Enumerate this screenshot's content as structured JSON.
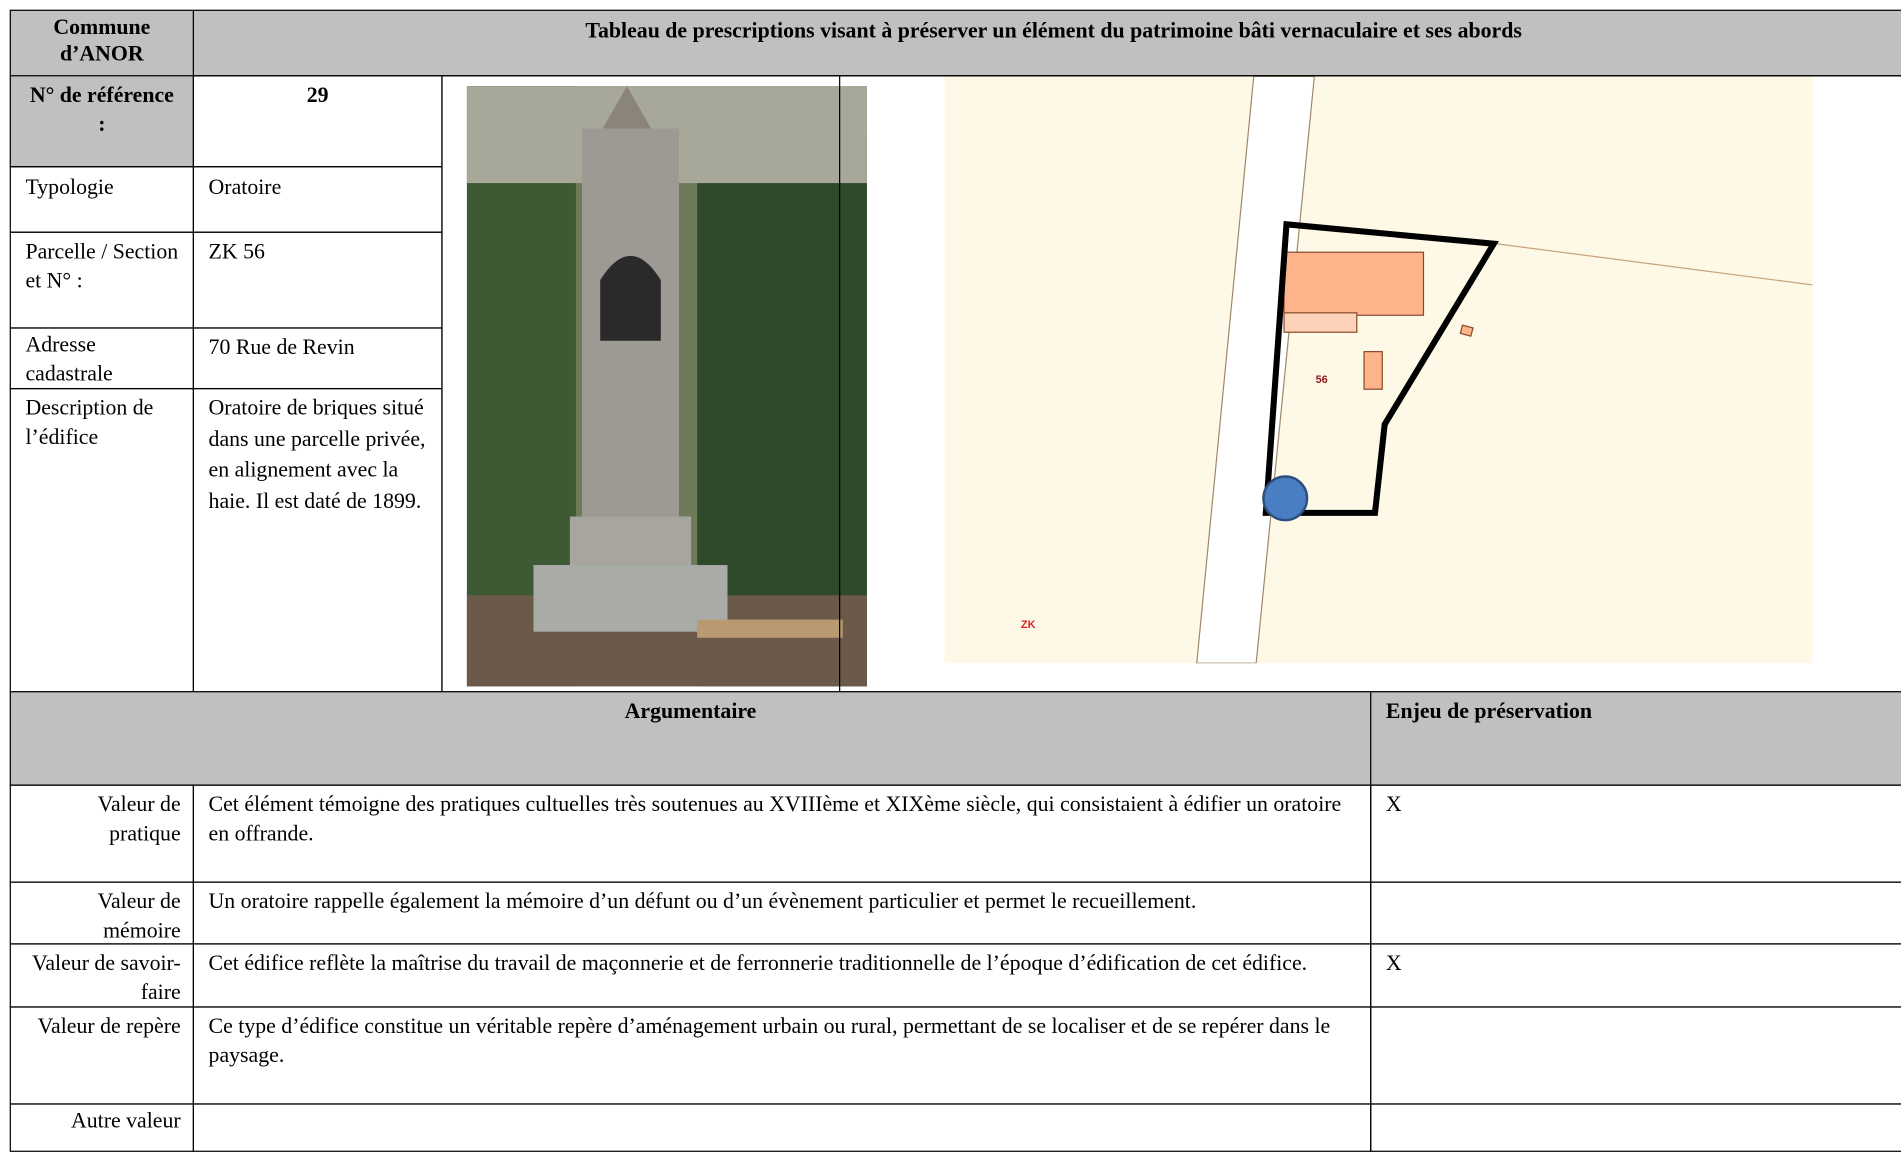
{
  "header": {
    "commune": "Commune d’ANOR",
    "title": "Tableau de prescriptions visant à préserver un élément du patrimoine bâti vernaculaire et ses abords"
  },
  "info": [
    {
      "label": "N° de référence :",
      "value": "29"
    },
    {
      "label": "Typologie",
      "value": "Oratoire"
    },
    {
      "label": "Parcelle / Section et N° :",
      "value": "ZK 56"
    },
    {
      "label": "Adresse cadastrale",
      "value": "70 Rue de Revin"
    },
    {
      "label": "Description de l’édifice",
      "value": "Oratoire de briques situé dans une parcelle privée, en alignement avec la haie. Il est daté de 1899."
    }
  ],
  "map": {
    "parcel_label": "56",
    "section_label": "ZK"
  },
  "argumentaire": {
    "header": "Argumentaire",
    "enjeu_header": "Enjeu de préservation",
    "rows": [
      {
        "label": "Valeur de pratique",
        "text": "Cet élément témoigne des pratiques cultuelles très soutenues au XVIIIème et XIXème siècle, qui consistaient à édifier un oratoire en offrande.",
        "enjeu": "X"
      },
      {
        "label": "Valeur de mémoire",
        "text": "Un oratoire rappelle également la mémoire d’un défunt ou d’un évènement particulier et permet le recueillement."
      },
      {
        "label": "Valeur de savoir-faire",
        "text": "Cet édifice reflète la maîtrise du travail de maçonnerie et de ferronnerie traditionnelle de l’époque d’édification de cet édifice.",
        "enjeu": "X"
      },
      {
        "label": "Valeur de repère",
        "text": "Ce type d’édifice constitue un véritable repère d’aménagement urbain ou rural, permettant de se localiser et de se repérer dans le paysage."
      },
      {
        "label": "Autre valeur"
      }
    ]
  }
}
